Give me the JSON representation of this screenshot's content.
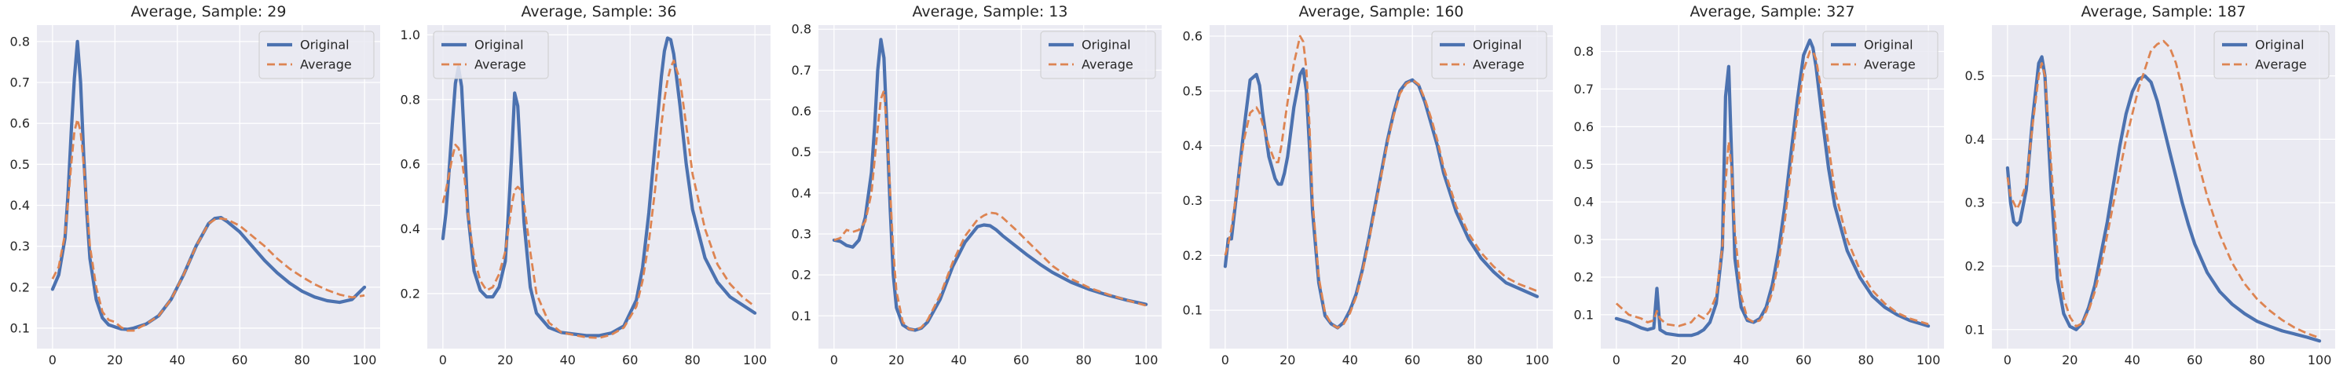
{
  "colors": {
    "original": "#4c72b0",
    "average": "#dd8452",
    "panel_bg": "#eaeaf2",
    "grid": "#ffffff"
  },
  "chart_data": [
    {
      "type": "line",
      "title": "Average, Sample: 29",
      "xlim": [
        -5,
        105
      ],
      "ylim": [
        0.05,
        0.84
      ],
      "xticks": [
        0,
        20,
        40,
        60,
        80,
        100
      ],
      "yticks": [
        0.1,
        0.2,
        0.3,
        0.4,
        0.5,
        0.6,
        0.7,
        0.8
      ],
      "ytick_labels": [
        "0.1",
        "0.2",
        "0.3",
        "0.4",
        "0.5",
        "0.6",
        "0.7",
        "0.8"
      ],
      "legend": "top-right",
      "x": [
        0,
        2,
        4,
        5,
        6,
        7,
        8,
        9,
        10,
        11,
        12,
        14,
        16,
        18,
        20,
        22,
        24,
        26,
        30,
        34,
        38,
        42,
        46,
        50,
        52,
        54,
        56,
        60,
        64,
        68,
        72,
        76,
        80,
        84,
        88,
        92,
        96,
        100
      ],
      "series": [
        {
          "name": "Original",
          "values": [
            0.195,
            0.23,
            0.32,
            0.43,
            0.58,
            0.71,
            0.8,
            0.7,
            0.52,
            0.38,
            0.27,
            0.17,
            0.125,
            0.108,
            0.103,
            0.098,
            0.097,
            0.1,
            0.11,
            0.13,
            0.17,
            0.23,
            0.3,
            0.355,
            0.368,
            0.37,
            0.36,
            0.335,
            0.3,
            0.265,
            0.235,
            0.21,
            0.19,
            0.176,
            0.167,
            0.163,
            0.17,
            0.2
          ]
        },
        {
          "name": "Average",
          "values": [
            0.22,
            0.25,
            0.33,
            0.41,
            0.5,
            0.58,
            0.61,
            0.58,
            0.5,
            0.4,
            0.3,
            0.2,
            0.14,
            0.12,
            0.115,
            0.102,
            0.094,
            0.094,
            0.11,
            0.13,
            0.17,
            0.23,
            0.3,
            0.355,
            0.365,
            0.368,
            0.365,
            0.35,
            0.325,
            0.3,
            0.27,
            0.245,
            0.225,
            0.207,
            0.193,
            0.182,
            0.175,
            0.18
          ]
        }
      ]
    },
    {
      "type": "line",
      "title": "Average, Sample: 36",
      "xlim": [
        -5,
        105
      ],
      "ylim": [
        0.03,
        1.03
      ],
      "xticks": [
        0,
        20,
        40,
        60,
        80,
        100
      ],
      "yticks": [
        0.2,
        0.4,
        0.6,
        0.8,
        1.0
      ],
      "ytick_labels": [
        "0.2",
        "0.4",
        "0.6",
        "0.8",
        "1.0"
      ],
      "legend": "top-left",
      "x": [
        0,
        1,
        2,
        3,
        4,
        5,
        6,
        7,
        8,
        10,
        12,
        14,
        16,
        18,
        20,
        21,
        22,
        23,
        24,
        25,
        26,
        28,
        30,
        34,
        38,
        42,
        46,
        50,
        54,
        58,
        62,
        64,
        66,
        68,
        70,
        71,
        72,
        73,
        74,
        76,
        78,
        80,
        84,
        88,
        92,
        96,
        100
      ],
      "series": [
        {
          "name": "Original",
          "values": [
            0.37,
            0.45,
            0.58,
            0.72,
            0.85,
            0.9,
            0.84,
            0.65,
            0.45,
            0.27,
            0.21,
            0.19,
            0.19,
            0.22,
            0.3,
            0.45,
            0.62,
            0.82,
            0.78,
            0.6,
            0.42,
            0.22,
            0.14,
            0.095,
            0.08,
            0.075,
            0.07,
            0.07,
            0.078,
            0.1,
            0.18,
            0.28,
            0.45,
            0.66,
            0.87,
            0.95,
            0.99,
            0.985,
            0.94,
            0.78,
            0.6,
            0.46,
            0.31,
            0.235,
            0.19,
            0.165,
            0.14
          ]
        },
        {
          "name": "Average",
          "values": [
            0.48,
            0.52,
            0.57,
            0.62,
            0.66,
            0.65,
            0.62,
            0.55,
            0.45,
            0.31,
            0.24,
            0.21,
            0.22,
            0.26,
            0.33,
            0.4,
            0.47,
            0.52,
            0.53,
            0.52,
            0.48,
            0.33,
            0.2,
            0.11,
            0.08,
            0.072,
            0.065,
            0.063,
            0.073,
            0.095,
            0.16,
            0.24,
            0.36,
            0.52,
            0.72,
            0.8,
            0.86,
            0.9,
            0.92,
            0.86,
            0.72,
            0.57,
            0.4,
            0.29,
            0.23,
            0.19,
            0.16
          ]
        }
      ]
    },
    {
      "type": "line",
      "title": "Average, Sample: 13",
      "xlim": [
        -5,
        105
      ],
      "ylim": [
        0.02,
        0.81
      ],
      "xticks": [
        0,
        20,
        40,
        60,
        80,
        100
      ],
      "yticks": [
        0.1,
        0.2,
        0.3,
        0.4,
        0.5,
        0.6,
        0.7,
        0.8
      ],
      "ytick_labels": [
        "0.1",
        "0.2",
        "0.3",
        "0.4",
        "0.5",
        "0.6",
        "0.7",
        "0.8"
      ],
      "legend": "top-right",
      "x": [
        0,
        2,
        4,
        6,
        8,
        10,
        12,
        13,
        14,
        15,
        16,
        17,
        18,
        19,
        20,
        22,
        24,
        26,
        28,
        30,
        34,
        38,
        42,
        46,
        48,
        50,
        52,
        54,
        58,
        62,
        66,
        70,
        76,
        82,
        88,
        94,
        100
      ],
      "series": [
        {
          "name": "Original",
          "values": [
            0.285,
            0.282,
            0.272,
            0.268,
            0.285,
            0.34,
            0.45,
            0.56,
            0.7,
            0.775,
            0.73,
            0.55,
            0.36,
            0.2,
            0.12,
            0.078,
            0.068,
            0.065,
            0.07,
            0.085,
            0.14,
            0.22,
            0.28,
            0.318,
            0.322,
            0.32,
            0.31,
            0.296,
            0.272,
            0.248,
            0.226,
            0.206,
            0.182,
            0.164,
            0.15,
            0.138,
            0.128
          ]
        },
        {
          "name": "Average",
          "values": [
            0.285,
            0.29,
            0.31,
            0.305,
            0.31,
            0.33,
            0.4,
            0.48,
            0.56,
            0.63,
            0.65,
            0.55,
            0.4,
            0.26,
            0.16,
            0.085,
            0.068,
            0.065,
            0.072,
            0.09,
            0.15,
            0.23,
            0.295,
            0.335,
            0.345,
            0.352,
            0.35,
            0.34,
            0.312,
            0.282,
            0.252,
            0.222,
            0.19,
            0.168,
            0.152,
            0.138,
            0.125
          ]
        }
      ]
    },
    {
      "type": "line",
      "title": "Average, Sample: 160",
      "xlim": [
        -5,
        105
      ],
      "ylim": [
        0.03,
        0.62
      ],
      "xticks": [
        0,
        20,
        40,
        60,
        80,
        100
      ],
      "yticks": [
        0.1,
        0.2,
        0.3,
        0.4,
        0.5,
        0.6
      ],
      "ytick_labels": [
        "0.1",
        "0.2",
        "0.3",
        "0.4",
        "0.5",
        "0.6"
      ],
      "legend": "top-right",
      "x": [
        0,
        1,
        2,
        3,
        4,
        6,
        8,
        10,
        11,
        12,
        14,
        16,
        17,
        18,
        19,
        20,
        22,
        24,
        25,
        26,
        27,
        28,
        30,
        32,
        34,
        36,
        38,
        40,
        42,
        44,
        46,
        48,
        50,
        52,
        54,
        56,
        58,
        60,
        62,
        64,
        66,
        68,
        70,
        74,
        78,
        82,
        86,
        90,
        94,
        100
      ],
      "series": [
        {
          "name": "Original",
          "values": [
            0.18,
            0.23,
            0.23,
            0.28,
            0.33,
            0.43,
            0.52,
            0.53,
            0.51,
            0.46,
            0.38,
            0.34,
            0.33,
            0.33,
            0.35,
            0.38,
            0.47,
            0.53,
            0.54,
            0.5,
            0.4,
            0.28,
            0.15,
            0.09,
            0.075,
            0.068,
            0.078,
            0.1,
            0.13,
            0.175,
            0.23,
            0.29,
            0.35,
            0.41,
            0.46,
            0.5,
            0.515,
            0.52,
            0.51,
            0.48,
            0.44,
            0.4,
            0.35,
            0.28,
            0.23,
            0.195,
            0.17,
            0.15,
            0.14,
            0.125
          ]
        },
        {
          "name": "Average",
          "values": [
            0.2,
            0.22,
            0.25,
            0.29,
            0.33,
            0.41,
            0.46,
            0.47,
            0.46,
            0.44,
            0.4,
            0.37,
            0.37,
            0.4,
            0.44,
            0.48,
            0.55,
            0.6,
            0.59,
            0.54,
            0.44,
            0.3,
            0.16,
            0.095,
            0.075,
            0.068,
            0.075,
            0.095,
            0.125,
            0.17,
            0.225,
            0.285,
            0.345,
            0.405,
            0.455,
            0.495,
            0.513,
            0.52,
            0.512,
            0.485,
            0.45,
            0.41,
            0.36,
            0.29,
            0.24,
            0.205,
            0.18,
            0.16,
            0.148,
            0.135
          ]
        }
      ]
    },
    {
      "type": "line",
      "title": "Average, Sample: 327",
      "xlim": [
        -5,
        105
      ],
      "ylim": [
        0.01,
        0.87
      ],
      "xticks": [
        0,
        20,
        40,
        60,
        80,
        100
      ],
      "yticks": [
        0.1,
        0.2,
        0.3,
        0.4,
        0.5,
        0.6,
        0.7,
        0.8
      ],
      "ytick_labels": [
        "0.1",
        "0.2",
        "0.3",
        "0.4",
        "0.5",
        "0.6",
        "0.7",
        "0.8"
      ],
      "legend": "top-right",
      "x": [
        0,
        4,
        8,
        10,
        12,
        13,
        14,
        16,
        20,
        24,
        26,
        28,
        30,
        32,
        34,
        35,
        36,
        37,
        38,
        40,
        42,
        44,
        46,
        48,
        50,
        52,
        54,
        56,
        58,
        60,
        62,
        63,
        64,
        66,
        68,
        70,
        74,
        78,
        82,
        86,
        90,
        94,
        100
      ],
      "series": [
        {
          "name": "Original",
          "values": [
            0.09,
            0.08,
            0.065,
            0.06,
            0.065,
            0.17,
            0.06,
            0.05,
            0.045,
            0.045,
            0.05,
            0.06,
            0.08,
            0.13,
            0.28,
            0.68,
            0.76,
            0.5,
            0.25,
            0.12,
            0.085,
            0.08,
            0.09,
            0.12,
            0.18,
            0.27,
            0.39,
            0.53,
            0.67,
            0.79,
            0.83,
            0.81,
            0.76,
            0.62,
            0.49,
            0.39,
            0.27,
            0.2,
            0.15,
            0.12,
            0.1,
            0.085,
            0.07
          ]
        },
        {
          "name": "Average",
          "values": [
            0.13,
            0.1,
            0.09,
            0.08,
            0.085,
            0.11,
            0.09,
            0.075,
            0.07,
            0.08,
            0.1,
            0.09,
            0.11,
            0.15,
            0.28,
            0.45,
            0.56,
            0.48,
            0.32,
            0.15,
            0.09,
            0.08,
            0.085,
            0.11,
            0.16,
            0.24,
            0.35,
            0.49,
            0.63,
            0.75,
            0.8,
            0.8,
            0.78,
            0.68,
            0.55,
            0.43,
            0.3,
            0.22,
            0.165,
            0.13,
            0.105,
            0.09,
            0.075
          ]
        }
      ]
    },
    {
      "type": "line",
      "title": "Average, Sample: 187",
      "xlim": [
        -5,
        105
      ],
      "ylim": [
        0.07,
        0.58
      ],
      "xticks": [
        0,
        20,
        40,
        60,
        80,
        100
      ],
      "yticks": [
        0.1,
        0.2,
        0.3,
        0.4,
        0.5
      ],
      "ytick_labels": [
        "0.1",
        "0.2",
        "0.3",
        "0.4",
        "0.5"
      ],
      "legend": "top-right",
      "x": [
        0,
        1,
        2,
        3,
        4,
        6,
        8,
        10,
        11,
        12,
        14,
        16,
        18,
        20,
        22,
        24,
        26,
        28,
        30,
        32,
        34,
        36,
        38,
        40,
        42,
        44,
        46,
        48,
        50,
        52,
        54,
        56,
        58,
        60,
        64,
        68,
        72,
        76,
        80,
        84,
        88,
        92,
        96,
        100
      ],
      "series": [
        {
          "name": "Original",
          "values": [
            0.355,
            0.3,
            0.27,
            0.265,
            0.27,
            0.32,
            0.43,
            0.52,
            0.53,
            0.5,
            0.32,
            0.18,
            0.125,
            0.105,
            0.1,
            0.11,
            0.135,
            0.17,
            0.22,
            0.27,
            0.33,
            0.39,
            0.44,
            0.475,
            0.495,
            0.5,
            0.49,
            0.46,
            0.42,
            0.38,
            0.34,
            0.3,
            0.265,
            0.235,
            0.19,
            0.16,
            0.14,
            0.125,
            0.113,
            0.105,
            0.098,
            0.093,
            0.088,
            0.082
          ]
        },
        {
          "name": "Average",
          "values": [
            0.34,
            0.31,
            0.3,
            0.29,
            0.3,
            0.33,
            0.42,
            0.5,
            0.52,
            0.5,
            0.36,
            0.22,
            0.15,
            0.12,
            0.105,
            0.11,
            0.13,
            0.16,
            0.2,
            0.25,
            0.3,
            0.35,
            0.4,
            0.44,
            0.48,
            0.51,
            0.54,
            0.55,
            0.555,
            0.545,
            0.52,
            0.48,
            0.43,
            0.385,
            0.31,
            0.25,
            0.205,
            0.172,
            0.148,
            0.13,
            0.115,
            0.103,
            0.094,
            0.087
          ]
        }
      ]
    }
  ]
}
